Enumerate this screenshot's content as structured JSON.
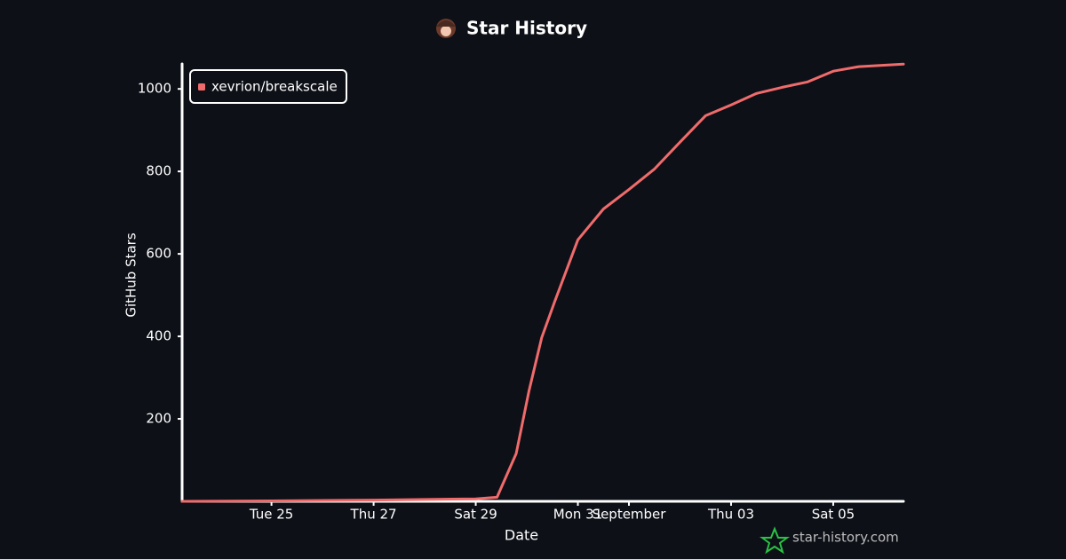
{
  "chart_data": {
    "type": "line",
    "title": "Star History",
    "x_label": "Date",
    "y_label": "GitHub Stars",
    "watermark": "star-history.com",
    "x": [
      "08-23T06",
      "08-25",
      "08-27",
      "08-29",
      "08-29T10",
      "08-29T19",
      "08-30T01",
      "08-30T07",
      "08-30T13",
      "08-31",
      "08-31T12",
      "09-01",
      "09-01T12",
      "09-02",
      "09-02T12",
      "09-03",
      "09-03T12",
      "09-04",
      "09-04T12",
      "09-05",
      "09-05T12",
      "09-06T09"
    ],
    "series": [
      {
        "name": "xevrion/breakscale",
        "color": "#f06b6b",
        "values": [
          0,
          1,
          3,
          6,
          10,
          116,
          267,
          397,
          483,
          634,
          709,
          756,
          806,
          871,
          935,
          961,
          989,
          1004,
          1017,
          1043,
          1054,
          1060
        ]
      }
    ],
    "xlim": [
      "08-23T06",
      "09-06T09"
    ],
    "xticks": [
      {
        "value": "08-25",
        "label": "Tue 25"
      },
      {
        "value": "08-27",
        "label": "Thu 27"
      },
      {
        "value": "08-29",
        "label": "Sat 29"
      },
      {
        "value": "08-31",
        "label": "Mon 31"
      },
      {
        "value": "09-01",
        "label": "September"
      },
      {
        "value": "09-03",
        "label": "Thu 03"
      },
      {
        "value": "09-05",
        "label": "Sat 05"
      }
    ],
    "ylim": [
      0,
      1065
    ],
    "yticks": [
      200,
      400,
      600,
      800,
      1000
    ],
    "legend": "top-left"
  }
}
